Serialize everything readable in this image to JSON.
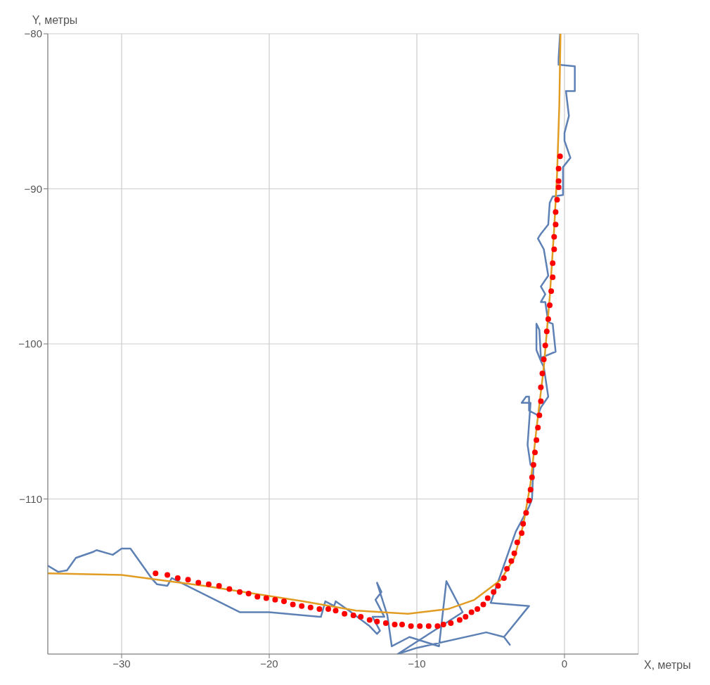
{
  "chart_data": {
    "type": "line",
    "xlabel": "X, метры",
    "ylabel": "Y, метры",
    "xlim": [
      -35,
      5
    ],
    "xticks": [
      -30,
      -20,
      -10,
      0
    ],
    "ylim": [
      -120,
      -80
    ],
    "yticks": [
      -110,
      -100,
      -90,
      -80
    ],
    "grid": true,
    "series": [
      {
        "type": "line",
        "color": "#5e81b5",
        "marker": "none",
        "x": [
          -35.0,
          -34.3,
          -33.7,
          -33.1,
          -31.9,
          -31.7,
          -30.6,
          -30.0,
          -29.4,
          -27.9,
          -27.6,
          -26.9,
          -26.6,
          -22.0,
          -20.0,
          -16.6,
          -16.5,
          -16.2,
          -15.6,
          -15.5,
          -14.6,
          -13.2,
          -12.7,
          -12.5,
          -13.0,
          -12.2,
          -12.8,
          -12.4,
          -12.7,
          -12.0,
          -11.7,
          -10.5,
          -8.5,
          -8.0,
          -6.9,
          -11.3,
          -10.0,
          -5.3,
          -4.1,
          -3.7,
          -4.1,
          -2.4,
          -5.0,
          -3.3,
          -2.4,
          -2.2,
          -2.1,
          -2.3,
          -2.5,
          -2.3,
          -2.9,
          -2.6,
          -2.4,
          -2.4,
          -1.8,
          -1.6,
          -1.1,
          -1.4,
          -1.6,
          -1.9,
          -1.9,
          -1.7,
          -1.6,
          -0.6,
          -0.8,
          -1.1,
          -1.3,
          -1.6,
          -1.3,
          -1.6,
          -1.1,
          -1.4,
          -1.8,
          -1.6,
          -1.1,
          -1.0,
          -0.8,
          -0.1,
          -0.1,
          0.4,
          0.0,
          0.0,
          0.3,
          0.1,
          0.7,
          0.7,
          -0.4,
          -0.4,
          -0.3
        ],
        "values": [
          -114.3,
          -114.7,
          -114.6,
          -113.8,
          -113.4,
          -113.3,
          -113.6,
          -113.2,
          -113.2,
          -115.2,
          -115.5,
          -115.6,
          -115.1,
          -117.3,
          -117.3,
          -117.6,
          -117.6,
          -116.6,
          -116.9,
          -116.6,
          -117.2,
          -118.2,
          -118.7,
          -118.5,
          -117.6,
          -117.6,
          -116.5,
          -116.0,
          -115.4,
          -117.5,
          -119.5,
          -118.9,
          -119.5,
          -115.3,
          -117.3,
          -120.0,
          -119.6,
          -118.6,
          -118.9,
          -119.4,
          -118.9,
          -116.9,
          -116.7,
          -112.1,
          -110.5,
          -110.0,
          -107.8,
          -107.8,
          -106.5,
          -103.8,
          -103.8,
          -103.4,
          -103.4,
          -104.3,
          -104.6,
          -104.1,
          -103.4,
          -101.5,
          -101.1,
          -100.4,
          -98.7,
          -99.1,
          -100.9,
          -100.5,
          -98.7,
          -98.6,
          -97.3,
          -97.3,
          -96.8,
          -96.3,
          -95.6,
          -93.9,
          -93.2,
          -92.9,
          -92.3,
          -90.9,
          -90.5,
          -90.4,
          -88.6,
          -88.0,
          -86.9,
          -86.4,
          -85.3,
          -83.7,
          -83.7,
          -82.1,
          -82.0,
          -81.6,
          -80.0
        ]
      },
      {
        "type": "line",
        "color": "#e19c24",
        "marker": "none",
        "x": [
          -35.0,
          -30.0,
          -24.4,
          -17.7,
          -14.1,
          -10.6,
          -7.9,
          -6.1,
          -4.3,
          -3.4,
          -2.8,
          -2.3,
          -1.9,
          -1.4,
          -1.0,
          -0.7,
          -0.5,
          -0.35,
          -0.27
        ],
        "values": [
          -114.8,
          -114.9,
          -115.6,
          -116.6,
          -117.2,
          -117.4,
          -117.1,
          -116.5,
          -115.2,
          -113.8,
          -111.7,
          -109.0,
          -105.5,
          -101.5,
          -97.0,
          -92.6,
          -89.0,
          -84.6,
          -80.0
        ]
      },
      {
        "type": "scatter",
        "color": "#ff0000",
        "marker": "circle",
        "x": [
          -27.7,
          -26.9,
          -26.2,
          -25.5,
          -24.8,
          -24.1,
          -23.4,
          -22.7,
          -22.0,
          -21.4,
          -20.8,
          -20.2,
          -19.6,
          -19.0,
          -18.4,
          -17.8,
          -17.2,
          -16.6,
          -16.0,
          -15.5,
          -14.9,
          -14.3,
          -13.8,
          -13.2,
          -12.7,
          -12.1,
          -11.5,
          -11.0,
          -10.4,
          -9.8,
          -9.2,
          -8.6,
          -8.2,
          -7.7,
          -7.1,
          -6.7,
          -6.3,
          -5.9,
          -5.5,
          -5.2,
          -4.8,
          -4.5,
          -4.1,
          -3.9,
          -3.6,
          -3.4,
          -3.2,
          -2.9,
          -2.8,
          -2.6,
          -2.4,
          -2.3,
          -2.2,
          -2.1,
          -2.0,
          -1.9,
          -1.8,
          -1.7,
          -1.6,
          -1.6,
          -1.5,
          -1.4,
          -1.3,
          -1.2,
          -1.1,
          -1.0,
          -0.9,
          -0.8,
          -0.8,
          -0.7,
          -0.7,
          -0.6,
          -0.6,
          -0.5,
          -0.4,
          -0.4,
          -0.4,
          -0.3
        ],
        "values": [
          -114.8,
          -114.9,
          -115.1,
          -115.2,
          -115.4,
          -115.5,
          -115.6,
          -115.8,
          -116.0,
          -116.1,
          -116.3,
          -116.4,
          -116.5,
          -116.6,
          -116.8,
          -116.9,
          -117.0,
          -117.1,
          -117.1,
          -117.2,
          -117.4,
          -117.5,
          -117.6,
          -117.8,
          -117.9,
          -118.0,
          -118.1,
          -118.1,
          -118.2,
          -118.2,
          -118.2,
          -118.2,
          -118.1,
          -118.0,
          -117.8,
          -117.6,
          -117.3,
          -117.1,
          -116.8,
          -116.4,
          -116.0,
          -115.6,
          -115.1,
          -114.5,
          -114.0,
          -113.5,
          -112.8,
          -112.2,
          -111.6,
          -110.9,
          -110.1,
          -109.4,
          -108.6,
          -107.8,
          -107.0,
          -106.2,
          -105.4,
          -104.6,
          -103.7,
          -102.8,
          -101.9,
          -101.0,
          -100.1,
          -99.2,
          -98.4,
          -97.5,
          -96.6,
          -95.7,
          -94.8,
          -93.9,
          -93.1,
          -92.3,
          -91.5,
          -90.7,
          -89.9,
          -89.5,
          -88.7,
          -87.9
        ]
      }
    ]
  }
}
